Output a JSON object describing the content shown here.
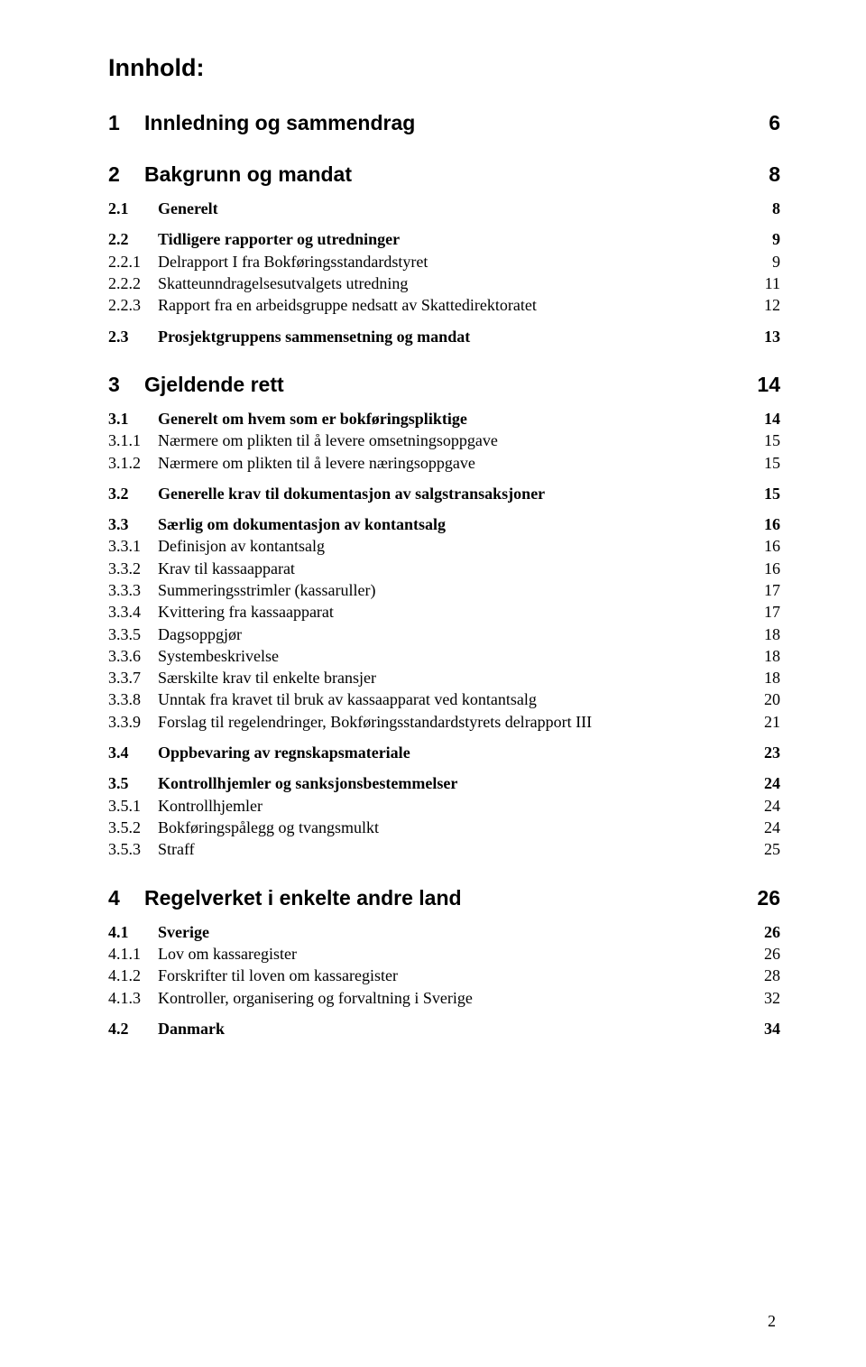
{
  "title": "Innhold:",
  "page_number": "2",
  "toc": [
    {
      "level": 1,
      "num": "1",
      "label": "Innledning og sammendrag",
      "page": "6"
    },
    {
      "level": 1,
      "num": "2",
      "label": "Bakgrunn og mandat",
      "page": "8"
    },
    {
      "level": 2,
      "num": "2.1",
      "label": "Generelt",
      "page": "8"
    },
    {
      "level": 2,
      "num": "2.2",
      "label": "Tidligere rapporter og utredninger",
      "page": "9"
    },
    {
      "level": 3,
      "num": "2.2.1",
      "label": "Delrapport I fra Bokføringsstandardstyret",
      "page": "9"
    },
    {
      "level": 3,
      "num": "2.2.2",
      "label": "Skatteunndragelsesutvalgets utredning",
      "page": "11"
    },
    {
      "level": 3,
      "num": "2.2.3",
      "label": "Rapport fra en arbeidsgruppe nedsatt av Skattedirektoratet",
      "page": "12"
    },
    {
      "level": 2,
      "num": "2.3",
      "label": "Prosjektgruppens sammensetning og mandat",
      "page": "13"
    },
    {
      "level": 1,
      "num": "3",
      "label": "Gjeldende rett",
      "page": "14"
    },
    {
      "level": 2,
      "num": "3.1",
      "label": "Generelt om hvem som er bokføringspliktige",
      "page": "14"
    },
    {
      "level": 3,
      "num": "3.1.1",
      "label": "Nærmere om plikten til å levere omsetningsoppgave",
      "page": "15"
    },
    {
      "level": 3,
      "num": "3.1.2",
      "label": "Nærmere om plikten til å levere næringsoppgave",
      "page": "15"
    },
    {
      "level": 2,
      "num": "3.2",
      "label": "Generelle krav til dokumentasjon av salgstransaksjoner",
      "page": "15"
    },
    {
      "level": 2,
      "num": "3.3",
      "label": "Særlig om dokumentasjon av kontantsalg",
      "page": "16"
    },
    {
      "level": 3,
      "num": "3.3.1",
      "label": "Definisjon av kontantsalg",
      "page": "16"
    },
    {
      "level": 3,
      "num": "3.3.2",
      "label": "Krav til kassaapparat",
      "page": "16"
    },
    {
      "level": 3,
      "num": "3.3.3",
      "label": "Summeringsstrimler (kassaruller)",
      "page": "17"
    },
    {
      "level": 3,
      "num": "3.3.4",
      "label": "Kvittering fra kassaapparat",
      "page": "17"
    },
    {
      "level": 3,
      "num": "3.3.5",
      "label": "Dagsoppgjør",
      "page": "18"
    },
    {
      "level": 3,
      "num": "3.3.6",
      "label": "Systembeskrivelse",
      "page": "18"
    },
    {
      "level": 3,
      "num": "3.3.7",
      "label": "Særskilte krav til enkelte bransjer",
      "page": "18"
    },
    {
      "level": 3,
      "num": "3.3.8",
      "label": "Unntak fra kravet til bruk av kassaapparat ved kontantsalg",
      "page": "20"
    },
    {
      "level": 3,
      "num": "3.3.9",
      "label": "Forslag til regelendringer, Bokføringsstandardstyrets delrapport III",
      "page": "21"
    },
    {
      "level": 2,
      "num": "3.4",
      "label": "Oppbevaring av regnskapsmateriale",
      "page": "23"
    },
    {
      "level": 2,
      "num": "3.5",
      "label": "Kontrollhjemler og sanksjonsbestemmelser",
      "page": "24"
    },
    {
      "level": 3,
      "num": "3.5.1",
      "label": "Kontrollhjemler",
      "page": "24"
    },
    {
      "level": 3,
      "num": "3.5.2",
      "label": "Bokføringspålegg og tvangsmulkt",
      "page": "24"
    },
    {
      "level": 3,
      "num": "3.5.3",
      "label": "Straff",
      "page": "25"
    },
    {
      "level": 1,
      "num": "4",
      "label": "Regelverket i enkelte andre land",
      "page": "26"
    },
    {
      "level": 2,
      "num": "4.1",
      "label": "Sverige",
      "page": "26"
    },
    {
      "level": 3,
      "num": "4.1.1",
      "label": "Lov om kassaregister",
      "page": "26"
    },
    {
      "level": 3,
      "num": "4.1.2",
      "label": "Forskrifter til loven om kassaregister",
      "page": "28"
    },
    {
      "level": 3,
      "num": "4.1.3",
      "label": "Kontroller, organisering og forvaltning i Sverige",
      "page": "32"
    },
    {
      "level": 2,
      "num": "4.2",
      "label": "Danmark",
      "page": "34"
    }
  ]
}
